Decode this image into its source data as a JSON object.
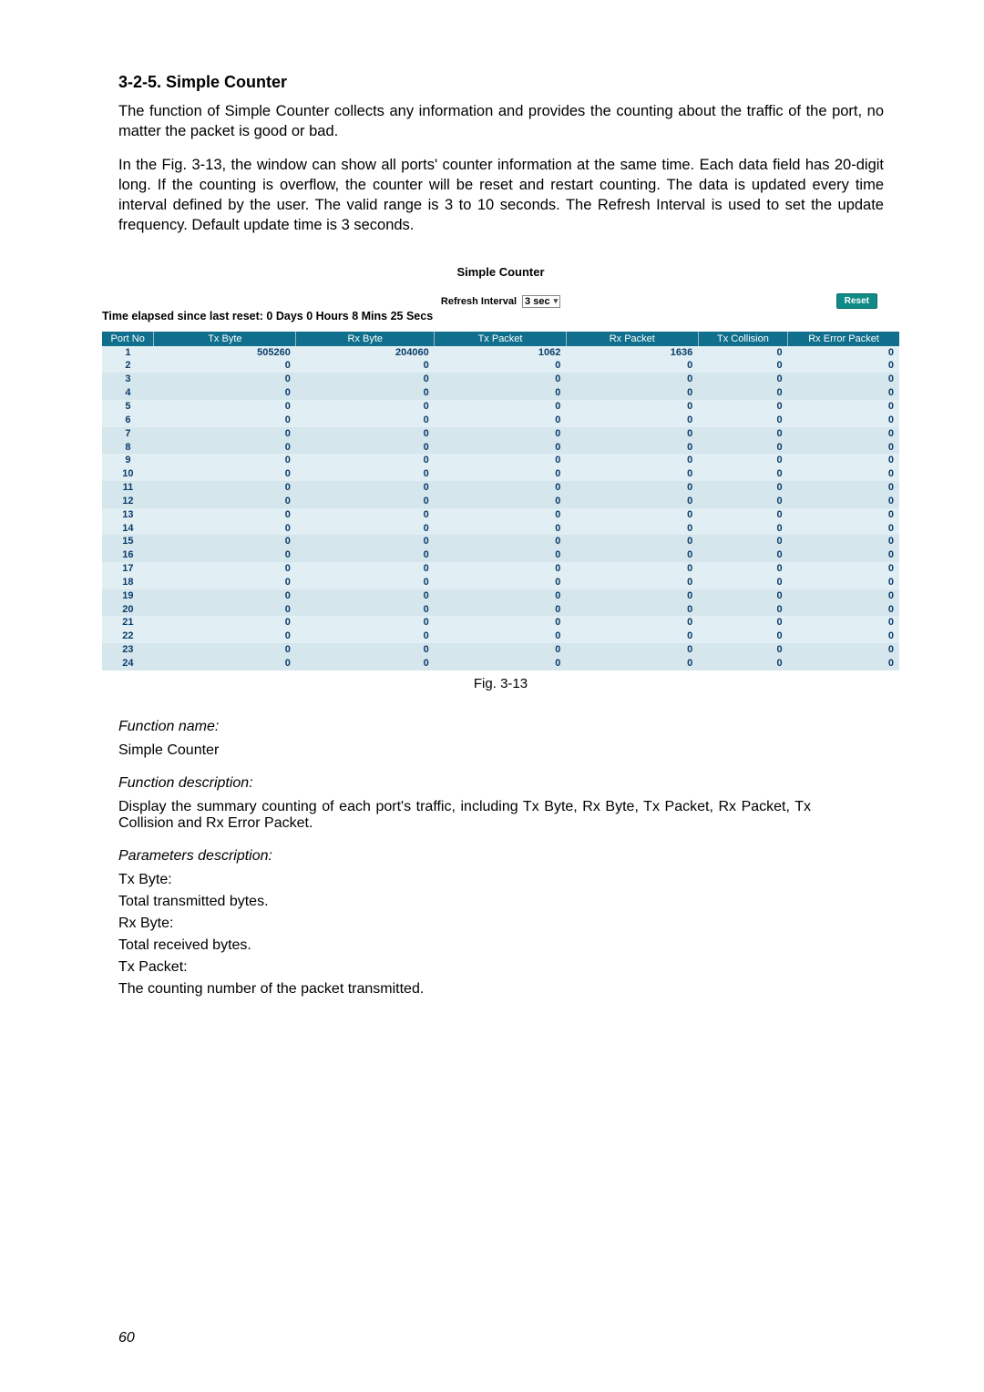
{
  "heading": "3-2-5. Simple Counter",
  "para1": "The function of Simple Counter collects any information and provides the counting about the traffic of the port, no matter the packet is good or bad.",
  "para2": "In the Fig. 3-13, the window can show all ports' counter information at the same time. Each data field has 20-digit long. If the counting is overflow, the counter will be reset and restart counting. The data is updated every time interval defined by the user. The valid range is 3 to 10 seconds. The Refresh Interval is used to set the update frequency. Default update time is 3 seconds.",
  "counter": {
    "title": "Simple Counter",
    "refresh_label": "Refresh Interval",
    "refresh_value": "3 sec",
    "reset_label": "Reset",
    "elapsed_text": "Time elapsed since last reset: 0 Days 0 Hours 8 Mins 25 Secs",
    "headers": {
      "port": "Port No",
      "txbyte": "Tx Byte",
      "rxbyte": "Rx Byte",
      "txpkt": "Tx Packet",
      "rxpkt": "Rx Packet",
      "txcol": "Tx Collision",
      "rxerr": "Rx Error Packet"
    },
    "header_bg": "#0f6f8c",
    "header_fg": "#ffffff",
    "row_bg_a": "#e1eef3",
    "row_bg_b": "#d5e6ed",
    "cell_color": "#0b3d6b",
    "rows": [
      {
        "port": "1",
        "txbyte": "505260",
        "rxbyte": "204060",
        "txpkt": "1062",
        "rxpkt": "1636",
        "txcol": "0",
        "rxerr": "0"
      },
      {
        "port": "2",
        "txbyte": "0",
        "rxbyte": "0",
        "txpkt": "0",
        "rxpkt": "0",
        "txcol": "0",
        "rxerr": "0"
      },
      {
        "port": "3",
        "txbyte": "0",
        "rxbyte": "0",
        "txpkt": "0",
        "rxpkt": "0",
        "txcol": "0",
        "rxerr": "0"
      },
      {
        "port": "4",
        "txbyte": "0",
        "rxbyte": "0",
        "txpkt": "0",
        "rxpkt": "0",
        "txcol": "0",
        "rxerr": "0"
      },
      {
        "port": "5",
        "txbyte": "0",
        "rxbyte": "0",
        "txpkt": "0",
        "rxpkt": "0",
        "txcol": "0",
        "rxerr": "0"
      },
      {
        "port": "6",
        "txbyte": "0",
        "rxbyte": "0",
        "txpkt": "0",
        "rxpkt": "0",
        "txcol": "0",
        "rxerr": "0"
      },
      {
        "port": "7",
        "txbyte": "0",
        "rxbyte": "0",
        "txpkt": "0",
        "rxpkt": "0",
        "txcol": "0",
        "rxerr": "0"
      },
      {
        "port": "8",
        "txbyte": "0",
        "rxbyte": "0",
        "txpkt": "0",
        "rxpkt": "0",
        "txcol": "0",
        "rxerr": "0"
      },
      {
        "port": "9",
        "txbyte": "0",
        "rxbyte": "0",
        "txpkt": "0",
        "rxpkt": "0",
        "txcol": "0",
        "rxerr": "0"
      },
      {
        "port": "10",
        "txbyte": "0",
        "rxbyte": "0",
        "txpkt": "0",
        "rxpkt": "0",
        "txcol": "0",
        "rxerr": "0"
      },
      {
        "port": "11",
        "txbyte": "0",
        "rxbyte": "0",
        "txpkt": "0",
        "rxpkt": "0",
        "txcol": "0",
        "rxerr": "0"
      },
      {
        "port": "12",
        "txbyte": "0",
        "rxbyte": "0",
        "txpkt": "0",
        "rxpkt": "0",
        "txcol": "0",
        "rxerr": "0"
      },
      {
        "port": "13",
        "txbyte": "0",
        "rxbyte": "0",
        "txpkt": "0",
        "rxpkt": "0",
        "txcol": "0",
        "rxerr": "0"
      },
      {
        "port": "14",
        "txbyte": "0",
        "rxbyte": "0",
        "txpkt": "0",
        "rxpkt": "0",
        "txcol": "0",
        "rxerr": "0"
      },
      {
        "port": "15",
        "txbyte": "0",
        "rxbyte": "0",
        "txpkt": "0",
        "rxpkt": "0",
        "txcol": "0",
        "rxerr": "0"
      },
      {
        "port": "16",
        "txbyte": "0",
        "rxbyte": "0",
        "txpkt": "0",
        "rxpkt": "0",
        "txcol": "0",
        "rxerr": "0"
      },
      {
        "port": "17",
        "txbyte": "0",
        "rxbyte": "0",
        "txpkt": "0",
        "rxpkt": "0",
        "txcol": "0",
        "rxerr": "0"
      },
      {
        "port": "18",
        "txbyte": "0",
        "rxbyte": "0",
        "txpkt": "0",
        "rxpkt": "0",
        "txcol": "0",
        "rxerr": "0"
      },
      {
        "port": "19",
        "txbyte": "0",
        "rxbyte": "0",
        "txpkt": "0",
        "rxpkt": "0",
        "txcol": "0",
        "rxerr": "0"
      },
      {
        "port": "20",
        "txbyte": "0",
        "rxbyte": "0",
        "txpkt": "0",
        "rxpkt": "0",
        "txcol": "0",
        "rxerr": "0"
      },
      {
        "port": "21",
        "txbyte": "0",
        "rxbyte": "0",
        "txpkt": "0",
        "rxpkt": "0",
        "txcol": "0",
        "rxerr": "0"
      },
      {
        "port": "22",
        "txbyte": "0",
        "rxbyte": "0",
        "txpkt": "0",
        "rxpkt": "0",
        "txcol": "0",
        "rxerr": "0"
      },
      {
        "port": "23",
        "txbyte": "0",
        "rxbyte": "0",
        "txpkt": "0",
        "rxpkt": "0",
        "txcol": "0",
        "rxerr": "0"
      },
      {
        "port": "24",
        "txbyte": "0",
        "rxbyte": "0",
        "txpkt": "0",
        "rxpkt": "0",
        "txcol": "0",
        "rxerr": "0"
      }
    ]
  },
  "fig_caption": "Fig. 3-13",
  "fn_name_label": "Function name:",
  "fn_name_value": "Simple Counter",
  "fn_desc_label": "Function description:",
  "fn_desc_value": "Display the summary counting of each port's traffic, including Tx Byte, Rx Byte, Tx Packet, Rx Packet, Tx Collision and Rx Error Packet.",
  "param_label": "Parameters description:",
  "params": {
    "txbyte_label": "Tx Byte:",
    "txbyte_desc": "Total transmitted bytes.",
    "rxbyte_label": "Rx Byte:",
    "rxbyte_desc": "Total received bytes.",
    "txpkt_label": "Tx Packet:",
    "txpkt_desc": "The counting number of the packet transmitted."
  },
  "page_number": "60"
}
